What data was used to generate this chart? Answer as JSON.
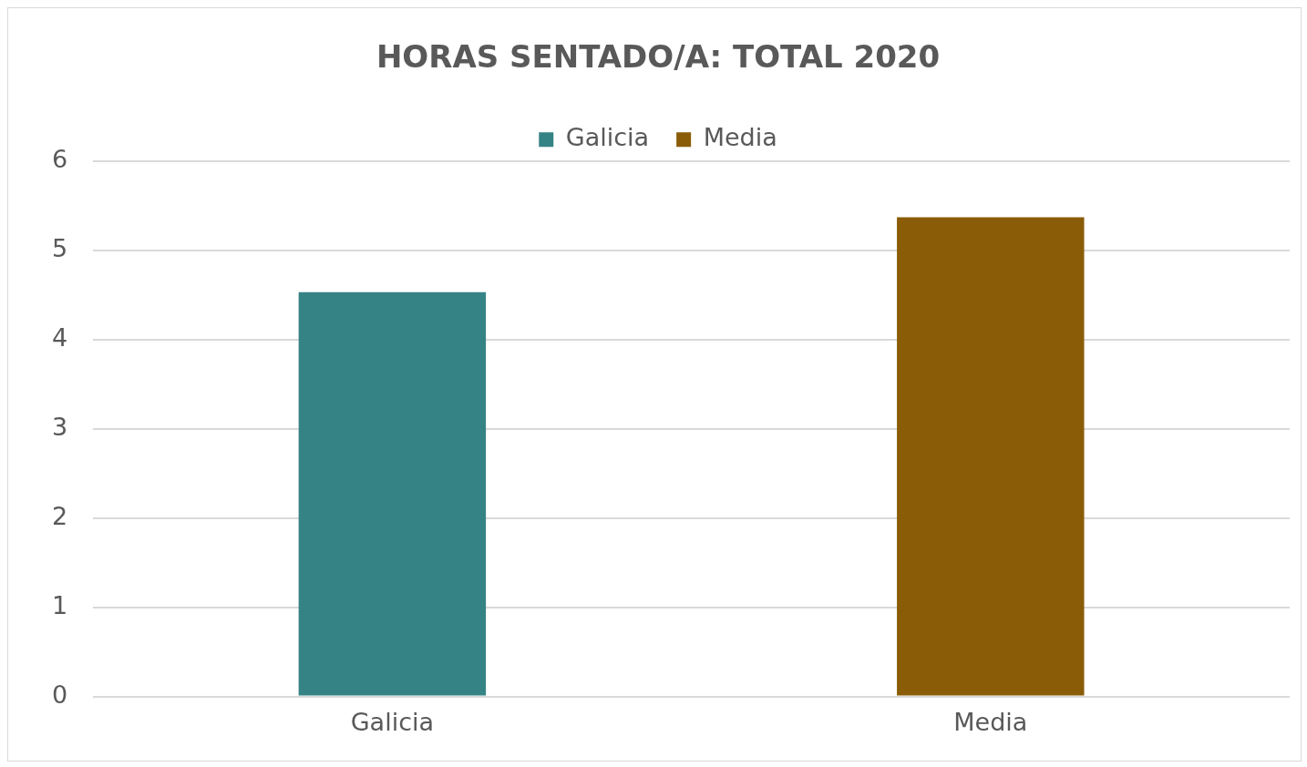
{
  "chart_data": {
    "type": "bar",
    "title": "HORAS SENTADO/A: TOTAL 2020",
    "categories": [
      "Galicia",
      "Media"
    ],
    "series": [
      {
        "name": "Galicia",
        "color": "#358385",
        "values": [
          4.53,
          null
        ]
      },
      {
        "name": "Media",
        "color": "#8a5c07",
        "values": [
          null,
          5.37
        ]
      }
    ],
    "ylim": [
      0,
      6
    ],
    "yticks": [
      0,
      1,
      2,
      3,
      4,
      5,
      6
    ],
    "grid": "y",
    "legend": "top"
  }
}
